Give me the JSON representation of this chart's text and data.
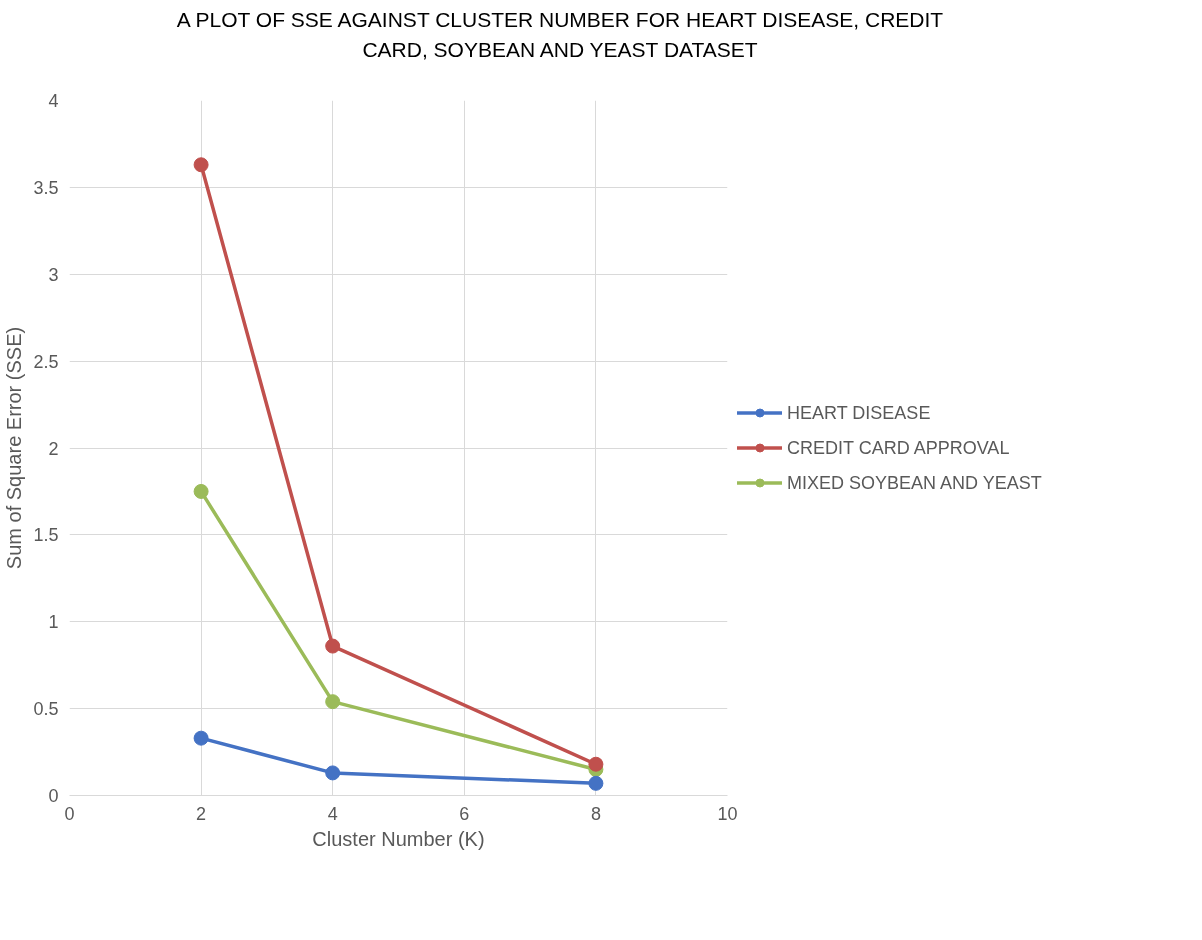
{
  "chart_data": {
    "type": "line",
    "title": "A PLOT OF SSE AGAINST CLUSTER NUMBER FOR HEART DISEASE, CREDIT CARD, SOYBEAN AND YEAST DATASET",
    "xlabel": "Cluster Number (K)",
    "ylabel": "Sum of Square Error (SSE)",
    "x": [
      2,
      4,
      8
    ],
    "series": [
      {
        "name": "HEART DISEASE",
        "color": "#4472c4",
        "values": [
          0.33,
          0.13,
          0.07
        ]
      },
      {
        "name": "CREDIT CARD APPROVAL",
        "color": "#c0504d",
        "values": [
          3.63,
          0.86,
          0.18
        ]
      },
      {
        "name": "MIXED SOYBEAN AND YEAST",
        "color": "#9bbb59",
        "values": [
          1.75,
          0.54,
          0.15
        ]
      }
    ],
    "xlim": [
      0,
      10
    ],
    "xticks": [
      0,
      2,
      4,
      6,
      8,
      10
    ],
    "ylim": [
      0,
      4
    ],
    "yticks": [
      0,
      0.5,
      1,
      1.5,
      2,
      2.5,
      3,
      3.5,
      4
    ],
    "grid": true,
    "legend": "right",
    "marker": "circle",
    "line_style": "solid"
  }
}
